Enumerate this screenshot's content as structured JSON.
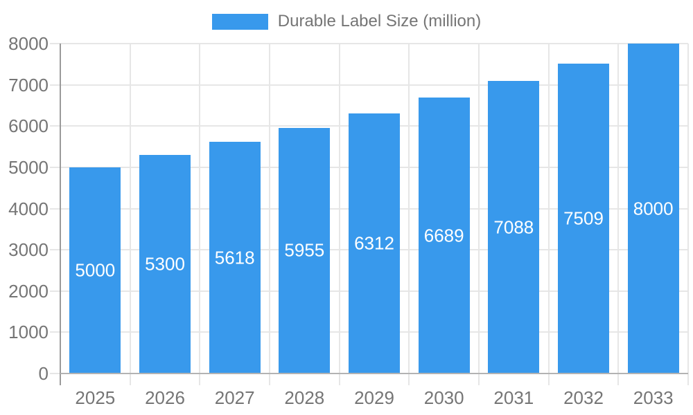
{
  "chart_data": {
    "type": "bar",
    "title": "Durable Label Size (million)",
    "categories": [
      "2025",
      "2026",
      "2027",
      "2028",
      "2029",
      "2030",
      "2031",
      "2032",
      "2033"
    ],
    "values": [
      5000,
      5300,
      5618,
      5955,
      6312,
      6689,
      7088,
      7509,
      8000
    ],
    "value_labels": [
      "5000",
      "5300",
      "5618",
      "5955",
      "6312",
      "6689",
      "7088",
      "7509",
      "8000"
    ],
    "xlabel": "",
    "ylabel": "",
    "ylim": [
      0,
      8000
    ],
    "y_ticks": [
      0,
      1000,
      2000,
      3000,
      4000,
      5000,
      6000,
      7000,
      8000
    ],
    "grid": true,
    "legend_position": "top",
    "colors": {
      "bar": "#3899EC",
      "value_label": "#FFFFFF",
      "tick_label": "#757575",
      "legend_text": "#757575",
      "grid_line": "#E6E6E6",
      "y_axis_line": "#9A9A9A",
      "x_baseline": "#B3B3B3",
      "background": "#FFFFFF"
    }
  }
}
